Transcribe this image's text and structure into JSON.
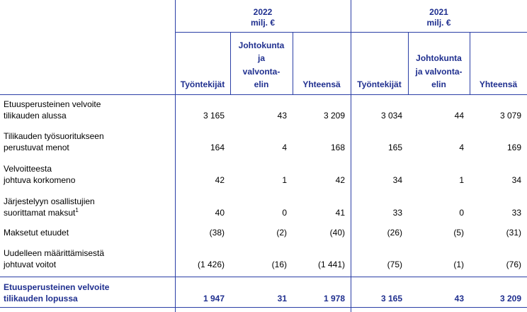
{
  "table": {
    "years": [
      {
        "year": "2022",
        "unit": "milj. €"
      },
      {
        "year": "2021",
        "unit": "milj. €"
      }
    ],
    "columns": [
      [
        "Työntekijät"
      ],
      [
        "Johtokunta",
        "ja",
        "valvonta-",
        "elin"
      ],
      [
        "Yhteensä"
      ],
      [
        "Työntekijät"
      ],
      [
        "Johtokunta",
        "ja valvonta-",
        "elin"
      ],
      [
        "Yhteensä"
      ]
    ],
    "rows": [
      {
        "label": [
          "Etuusperusteinen velvoite",
          "tilikauden alussa"
        ],
        "values": [
          "3 165",
          "43",
          "3 209",
          "3 034",
          "44",
          "3 079"
        ]
      },
      {
        "label": [
          "Tilikauden työsuoritukseen",
          "perustuvat menot"
        ],
        "values": [
          "164",
          "4",
          "168",
          "165",
          "4",
          "169"
        ]
      },
      {
        "label": [
          "Velvoitteesta",
          "johtuva korkomeno"
        ],
        "values": [
          "42",
          "1",
          "42",
          "34",
          "1",
          "34"
        ]
      },
      {
        "label": [
          "Järjestelyyn osallistujien",
          "suorittamat maksut"
        ],
        "note": "1",
        "values": [
          "40",
          "0",
          "41",
          "33",
          "0",
          "33"
        ]
      },
      {
        "label": [
          "Maksetut etuudet"
        ],
        "values": [
          "(38)",
          "(2)",
          "(40)",
          "(26)",
          "(5)",
          "(31)"
        ]
      },
      {
        "label": [
          "Uudelleen määrittämisestä",
          "johtuvat voitot"
        ],
        "values": [
          "(1 426)",
          "(16)",
          "(1 441)",
          "(75)",
          "(1)",
          "(76)"
        ]
      }
    ],
    "total": {
      "label": [
        "Etuusperusteinen velvoite",
        "tilikauden lopussa"
      ],
      "values": [
        "1 947",
        "31",
        "1 978",
        "3 165",
        "43",
        "3 209"
      ]
    }
  }
}
